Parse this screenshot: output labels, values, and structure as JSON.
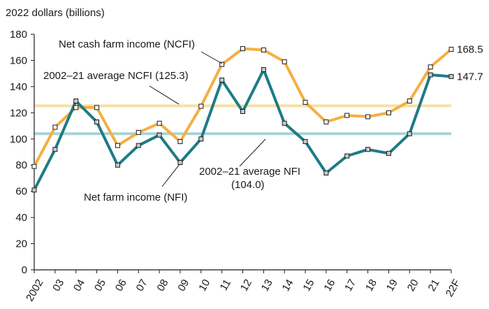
{
  "chart_data": {
    "type": "line",
    "ylabel": "2022 dollars (billions)",
    "ylim": [
      0,
      180
    ],
    "yticks": [
      0,
      20,
      40,
      60,
      80,
      100,
      120,
      140,
      160,
      180
    ],
    "categories": [
      "2002",
      "03",
      "04",
      "05",
      "06",
      "07",
      "08",
      "09",
      "10",
      "11",
      "12",
      "13",
      "14",
      "15",
      "16",
      "17",
      "18",
      "19",
      "20",
      "21",
      "22F"
    ],
    "series": [
      {
        "name": "Net cash farm income (NCFI)",
        "color": "#F5AF3F",
        "marker_fill": "#ffffff",
        "values": [
          79,
          109,
          124,
          124,
          95,
          105,
          112,
          98,
          125,
          157,
          169,
          168,
          159,
          128,
          113,
          118,
          117,
          120,
          129,
          155,
          168.5
        ],
        "end_label": "168.5"
      },
      {
        "name": "Net farm income (NFI)",
        "color": "#1E7B86",
        "marker_fill": "#c8c8c8",
        "values": [
          61,
          92,
          129,
          113,
          80,
          95,
          103,
          82,
          100,
          145,
          121,
          153,
          112,
          98,
          74,
          87,
          92,
          89,
          104,
          149,
          147.7
        ],
        "end_label": "147.7"
      }
    ],
    "reference_lines": [
      {
        "name": "2002–21 average NCFI (125.3)",
        "value": 125.3,
        "color": "#F7DFA6"
      },
      {
        "name": "2002–21 average NFI (104.0)",
        "value": 104.0,
        "color": "#A9D3D5"
      }
    ],
    "annotations": {
      "ncfi_label": "Net cash farm income (NCFI)",
      "ncfi_avg_label": "2002–21 average NCFI (125.3)",
      "nfi_avg_line1": "2002–21 average NFI",
      "nfi_avg_line2": "(104.0)",
      "nfi_label": "Net farm income (NFI)"
    },
    "grid": false
  }
}
